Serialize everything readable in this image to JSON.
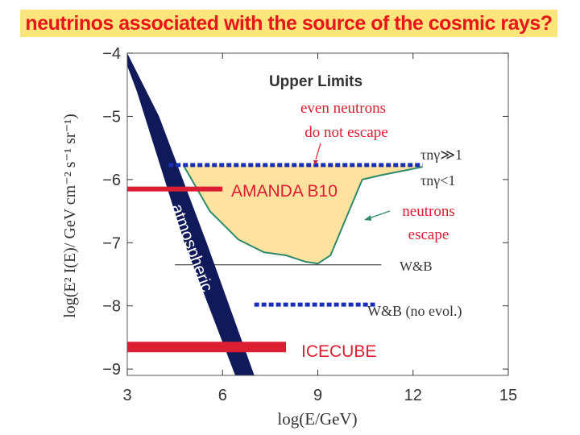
{
  "header": {
    "title": "neutrinos associated with the source of the cosmic rays?"
  },
  "colors": {
    "title_bg": "#fce67c",
    "title_text": "#e8151b",
    "atmospheric_band": "#101a5a",
    "red_limits": "#dc1e32",
    "dashed_limits": "#1830b8",
    "fill_region": "#fde2a0",
    "fill_outline": "#2f8a6a"
  },
  "chart_data": {
    "type": "line",
    "xlabel": "log(E/GeV)",
    "ylabel": "log(E² I(E)/ GeV cm⁻² s⁻¹ sr⁻¹)",
    "xlim": [
      3,
      15
    ],
    "ylim": [
      -9.1,
      -4
    ],
    "xticks": [
      3,
      6,
      9,
      12,
      15
    ],
    "yticks": [
      -4,
      -5,
      -6,
      -7,
      -8,
      -9
    ],
    "annotations": {
      "upper_limits": "Upper Limits",
      "even_neutrons": [
        "even neutrons",
        "do not escape"
      ],
      "neutrons_escape": [
        "neutrons",
        "escape"
      ],
      "tau_much_greater": "τnγ≫1",
      "tau_less": "τnγ<1",
      "wb": "W&B",
      "wb_no_evol": "W&B (no evol.)",
      "amanda": "AMANDA B10",
      "icecube": "ICECUBE",
      "atmospheric": "atmospheric"
    },
    "series": [
      {
        "name": "AMANDA B10",
        "x": [
          3,
          6
        ],
        "y": [
          -6.15,
          -6.15
        ]
      },
      {
        "name": "ICECUBE",
        "x": [
          3,
          8
        ],
        "y": [
          -8.65,
          -8.65
        ]
      },
      {
        "name": "τnγ≫1",
        "x": [
          4.3,
          12.3
        ],
        "y": [
          -5.77,
          -5.77
        ]
      },
      {
        "name": "W&B",
        "x": [
          4.5,
          11
        ],
        "y": [
          -7.35,
          -7.35
        ]
      },
      {
        "name": "W&B (no evol.)",
        "x": [
          7.0,
          10.8
        ],
        "y": [
          -7.98,
          -7.98
        ]
      },
      {
        "name": "τnγ<1",
        "x": [
          4.8,
          5.6,
          6.5,
          7.3,
          8.0,
          8.6,
          9.0,
          9.4,
          9.9,
          10.4,
          11.0,
          11.5,
          12.3
        ],
        "y": [
          -5.8,
          -6.5,
          -6.95,
          -7.15,
          -7.2,
          -7.3,
          -7.33,
          -7.2,
          -6.6,
          -6.0,
          -5.93,
          -5.88,
          -5.8
        ]
      },
      {
        "name": "atmospheric",
        "upper_edge": {
          "x": [
            3.0,
            4.0,
            5.5,
            7.0
          ],
          "y": [
            -4.0,
            -5.0,
            -7.0,
            -9.1
          ]
        },
        "lower_edge": {
          "x": [
            3.0,
            3.3,
            4.8,
            6.4
          ],
          "y": [
            -4.2,
            -4.6,
            -7.0,
            -9.1
          ]
        }
      }
    ]
  }
}
